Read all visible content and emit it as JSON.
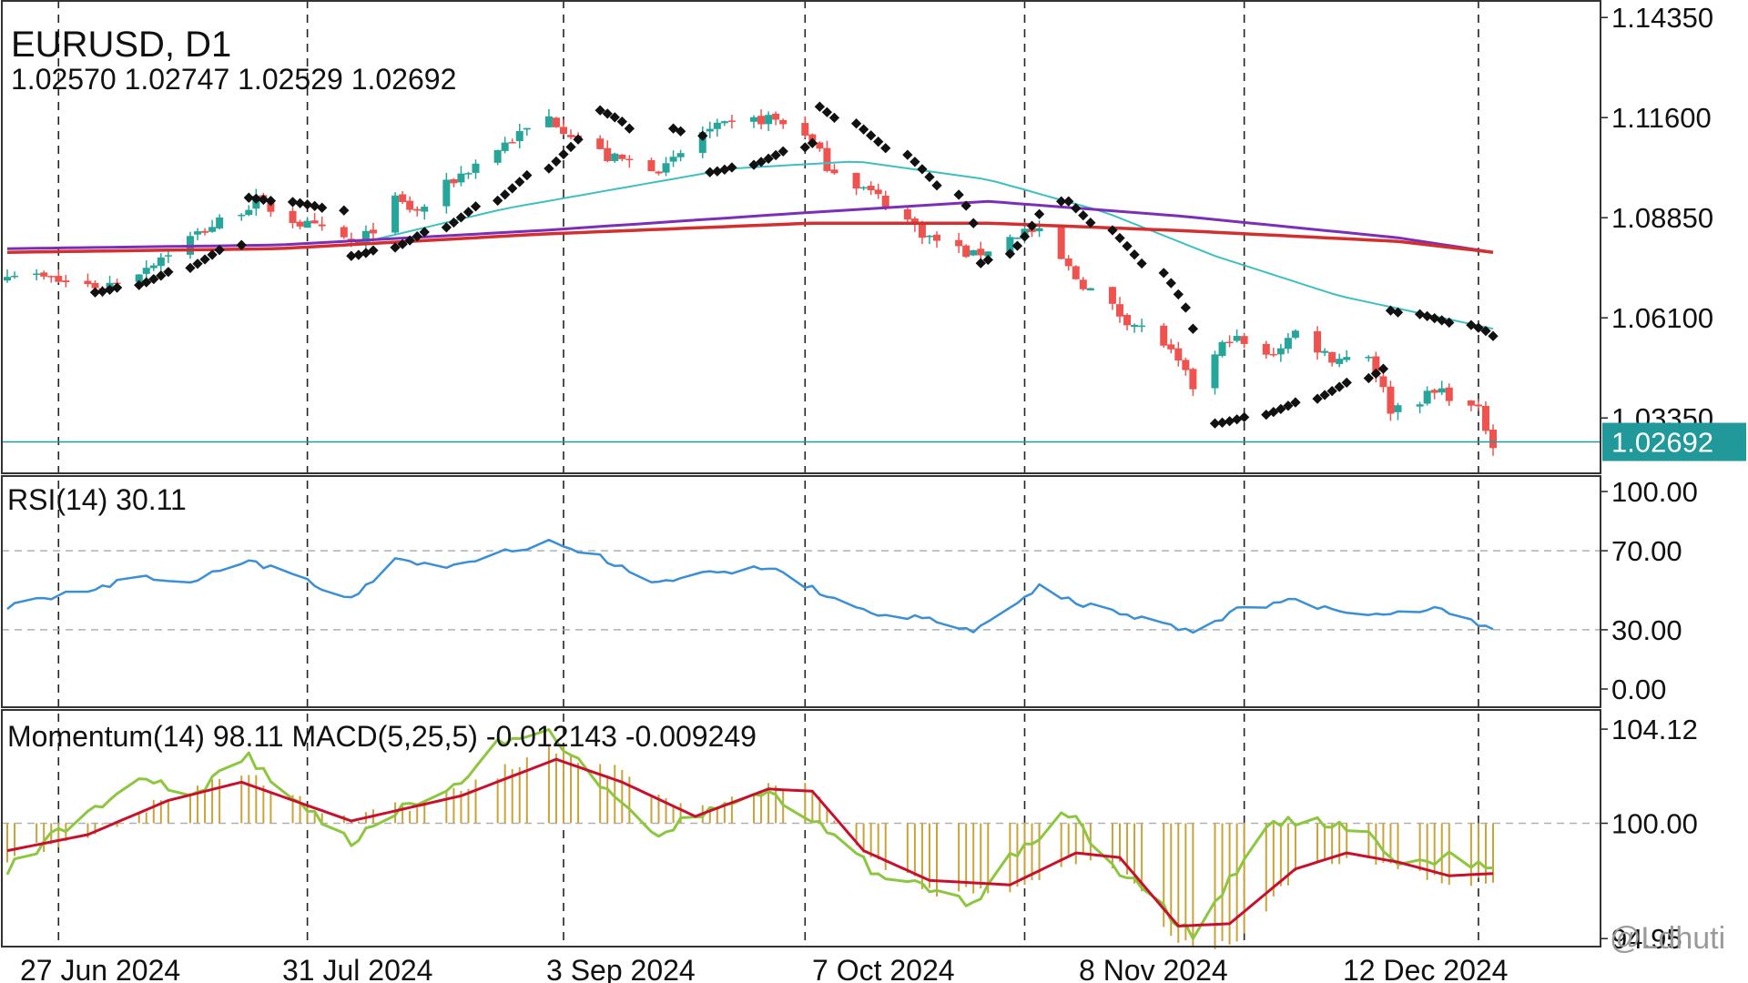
{
  "chart_data": {
    "type": "candlestick",
    "symbol": "EURUSD, D1",
    "ohlc_readout": "1.02570 1.02747 1.02529 1.02692",
    "current_price": "1.02692",
    "price_axis": {
      "ticks": [
        "1.14350",
        "1.11600",
        "1.08850",
        "1.06100",
        "1.03350"
      ],
      "ylim": [
        1.0183,
        1.1483
      ]
    },
    "date_axis": {
      "ticks": [
        "27 Jun 2024",
        "31 Jul 2024",
        "3 Sep 2024",
        "7 Oct 2024",
        "8 Nov 2024",
        "12 Dec 2024"
      ]
    },
    "price_waypoints": [
      [
        "2024-06-13",
        1.074
      ],
      [
        "2024-06-20",
        1.071
      ],
      [
        "2024-06-26",
        1.0695
      ],
      [
        "2024-07-01",
        1.074
      ],
      [
        "2024-07-08",
        1.083
      ],
      [
        "2024-07-17",
        1.093
      ],
      [
        "2024-07-23",
        1.087
      ],
      [
        "2024-07-31",
        1.081
      ],
      [
        "2024-08-05",
        1.093
      ],
      [
        "2024-08-08",
        1.09
      ],
      [
        "2024-08-13",
        1.099
      ],
      [
        "2024-08-20",
        1.109
      ],
      [
        "2024-08-26",
        1.116
      ],
      [
        "2024-09-03",
        1.105
      ],
      [
        "2024-09-11",
        1.102
      ],
      [
        "2024-09-16",
        1.112
      ],
      [
        "2024-09-25",
        1.116
      ],
      [
        "2024-09-30",
        1.112
      ],
      [
        "2024-10-03",
        1.103
      ],
      [
        "2024-10-10",
        1.094
      ],
      [
        "2024-10-17",
        1.083
      ],
      [
        "2024-10-23",
        1.078
      ],
      [
        "2024-10-30",
        1.085
      ],
      [
        "2024-11-01",
        1.084
      ],
      [
        "2024-11-06",
        1.072
      ],
      [
        "2024-11-12",
        1.062
      ],
      [
        "2024-11-18",
        1.054
      ],
      [
        "2024-11-22",
        1.042
      ],
      [
        "2024-11-27",
        1.056
      ],
      [
        "2024-12-02",
        1.05
      ],
      [
        "2024-12-06",
        1.057
      ],
      [
        "2024-12-11",
        1.05
      ],
      [
        "2024-12-16",
        1.051
      ],
      [
        "2024-12-19",
        1.036
      ],
      [
        "2024-12-26",
        1.041
      ],
      [
        "2024-12-31",
        1.035
      ],
      [
        "2025-01-02",
        1.0269
      ]
    ],
    "ma_fast_waypoints": [
      [
        "2024-07-30",
        1.081
      ],
      [
        "2024-08-20",
        1.091
      ],
      [
        "2024-09-20",
        1.102
      ],
      [
        "2024-10-07",
        1.104
      ],
      [
        "2024-10-25",
        1.099
      ],
      [
        "2024-11-10",
        1.09
      ],
      [
        "2024-11-25",
        1.078
      ],
      [
        "2024-12-12",
        1.067
      ],
      [
        "2025-01-02",
        1.058
      ]
    ],
    "ma_slow_purple_waypoints": [
      [
        "2024-06-13",
        1.08
      ],
      [
        "2024-07-20",
        1.081
      ],
      [
        "2024-08-25",
        1.085
      ],
      [
        "2024-10-01",
        1.09
      ],
      [
        "2024-10-25",
        1.093
      ],
      [
        "2024-11-20",
        1.089
      ],
      [
        "2024-12-20",
        1.083
      ],
      [
        "2025-01-02",
        1.079
      ]
    ],
    "ma_slow_red_waypoints": [
      [
        "2024-06-13",
        1.079
      ],
      [
        "2024-07-20",
        1.08
      ],
      [
        "2024-08-25",
        1.084
      ],
      [
        "2024-10-01",
        1.087
      ],
      [
        "2024-10-25",
        1.087
      ],
      [
        "2024-11-20",
        1.085
      ],
      [
        "2024-12-20",
        1.082
      ],
      [
        "2025-01-02",
        1.079
      ]
    ],
    "psar_segments": [
      {
        "side": "below",
        "from": "2024-06-25",
        "to": "2024-07-15",
        "start": 1.068,
        "end": 1.081
      },
      {
        "side": "above",
        "from": "2024-07-16",
        "to": "2024-07-29",
        "start": 1.094,
        "end": 1.0905
      },
      {
        "side": "below",
        "from": "2024-07-30",
        "to": "2024-08-30",
        "start": 1.078,
        "end": 1.11
      },
      {
        "side": "above",
        "from": "2024-08-31",
        "to": "2024-09-07",
        "start": 1.118,
        "end": 1.113
      },
      {
        "side": "above",
        "from": "2024-09-12",
        "to": "2024-09-16",
        "start": 1.113,
        "end": 1.111
      },
      {
        "side": "below",
        "from": "2024-09-17",
        "to": "2024-10-01",
        "start": 1.101,
        "end": 1.109
      },
      {
        "side": "above",
        "from": "2024-10-02",
        "to": "2024-10-23",
        "start": 1.119,
        "end": 1.087
      },
      {
        "side": "below",
        "from": "2024-10-24",
        "to": "2024-11-04",
        "start": 1.076,
        "end": 1.093
      },
      {
        "side": "above",
        "from": "2024-11-05",
        "to": "2024-11-22",
        "start": 1.093,
        "end": 1.058
      },
      {
        "side": "below",
        "from": "2024-11-23",
        "to": "2024-12-18",
        "start": 1.032,
        "end": 1.047
      },
      {
        "side": "above",
        "from": "2024-12-19",
        "to": "2025-01-02",
        "start": 1.063,
        "end": 1.056
      }
    ],
    "rsi": {
      "label": "RSI(14) 30.11",
      "ticks": [
        "100.00",
        "70.00",
        "30.00",
        "0.00"
      ],
      "ylim": [
        0,
        100
      ],
      "levels": [
        70,
        30
      ],
      "waypoints": [
        [
          "2024-06-13",
          42
        ],
        [
          "2024-06-24",
          50
        ],
        [
          "2024-07-01",
          57
        ],
        [
          "2024-07-08",
          55
        ],
        [
          "2024-07-16",
          65
        ],
        [
          "2024-07-24",
          55
        ],
        [
          "2024-07-30",
          45
        ],
        [
          "2024-08-05",
          65
        ],
        [
          "2024-08-13",
          62
        ],
        [
          "2024-08-20",
          70
        ],
        [
          "2024-08-26",
          74
        ],
        [
          "2024-09-02",
          67
        ],
        [
          "2024-09-09",
          53
        ],
        [
          "2024-09-16",
          58
        ],
        [
          "2024-09-25",
          62
        ],
        [
          "2024-10-03",
          47
        ],
        [
          "2024-10-10",
          38
        ],
        [
          "2024-10-17",
          35
        ],
        [
          "2024-10-23",
          29
        ],
        [
          "2024-10-29",
          43
        ],
        [
          "2024-11-01",
          52
        ],
        [
          "2024-11-06",
          44
        ],
        [
          "2024-11-15",
          36
        ],
        [
          "2024-11-22",
          29
        ],
        [
          "2024-11-28",
          40
        ],
        [
          "2024-12-06",
          45
        ],
        [
          "2024-12-13",
          38
        ],
        [
          "2024-12-19",
          39
        ],
        [
          "2024-12-26",
          41
        ],
        [
          "2025-01-02",
          30
        ]
      ]
    },
    "momentum_macd": {
      "label": "Momentum(14) 98.11 MACD(5,25,5) -0.012143 -0.009249",
      "ticks": [
        "104.12",
        "100.00",
        "94.95"
      ],
      "ylim": [
        94.6,
        105.0
      ],
      "level": 100.0,
      "momentum_waypoints": [
        [
          "2024-06-13",
          98.0
        ],
        [
          "2024-06-24",
          100.5
        ],
        [
          "2024-07-01",
          102.0
        ],
        [
          "2024-07-08",
          101.3
        ],
        [
          "2024-07-16",
          102.9
        ],
        [
          "2024-07-24",
          100.5
        ],
        [
          "2024-07-30",
          99.2
        ],
        [
          "2024-08-06",
          100.8
        ],
        [
          "2024-08-13",
          101.5
        ],
        [
          "2024-08-19",
          103.5
        ],
        [
          "2024-08-26",
          104.0
        ],
        [
          "2024-09-03",
          101.3
        ],
        [
          "2024-09-10",
          99.5
        ],
        [
          "2024-09-16",
          100.5
        ],
        [
          "2024-09-24",
          101.4
        ],
        [
          "2024-10-02",
          100.0
        ],
        [
          "2024-10-09",
          98.0
        ],
        [
          "2024-10-17",
          97.0
        ],
        [
          "2024-10-23",
          96.5
        ],
        [
          "2024-10-28",
          98.5
        ],
        [
          "2024-11-01",
          99.5
        ],
        [
          "2024-11-05",
          100.5
        ],
        [
          "2024-11-10",
          98.5
        ],
        [
          "2024-11-17",
          96.5
        ],
        [
          "2024-11-22",
          95.1
        ],
        [
          "2024-11-27",
          97.5
        ],
        [
          "2024-12-02",
          100.0
        ],
        [
          "2024-12-09",
          100.1
        ],
        [
          "2024-12-16",
          99.5
        ],
        [
          "2024-12-20",
          98.2
        ],
        [
          "2024-12-27",
          98.5
        ],
        [
          "2025-01-02",
          98.1
        ]
      ],
      "macd_waypoints": [
        [
          "2024-06-13",
          98.8
        ],
        [
          "2024-06-24",
          99.5
        ],
        [
          "2024-07-05",
          101.0
        ],
        [
          "2024-07-15",
          101.8
        ],
        [
          "2024-07-30",
          100.1
        ],
        [
          "2024-08-14",
          101.2
        ],
        [
          "2024-08-27",
          102.8
        ],
        [
          "2024-09-05",
          101.8
        ],
        [
          "2024-09-15",
          100.3
        ],
        [
          "2024-09-25",
          101.5
        ],
        [
          "2024-10-01",
          101.4
        ],
        [
          "2024-10-08",
          98.8
        ],
        [
          "2024-10-17",
          97.5
        ],
        [
          "2024-10-28",
          97.3
        ],
        [
          "2024-11-06",
          98.7
        ],
        [
          "2024-11-12",
          98.5
        ],
        [
          "2024-11-20",
          95.5
        ],
        [
          "2024-11-27",
          95.6
        ],
        [
          "2024-12-06",
          98.0
        ],
        [
          "2024-12-13",
          98.7
        ],
        [
          "2024-12-20",
          98.3
        ],
        [
          "2024-12-27",
          97.7
        ],
        [
          "2025-01-02",
          97.8
        ]
      ]
    }
  },
  "colors": {
    "bull": "#26a69a",
    "bear": "#ef5350",
    "ma_fast": "#3dbfc4",
    "ma_purple": "#7b2fb8",
    "ma_red": "#d32f2f",
    "psar": "#111111",
    "rsi": "#3a8fd6",
    "momentum": "#8dc63f",
    "macd_signal": "#c8102e",
    "histogram": "#c8a33a",
    "price_tag": "#21999b",
    "grid_dash": "#b0b0b0"
  },
  "watermark": "@Ldhuti"
}
